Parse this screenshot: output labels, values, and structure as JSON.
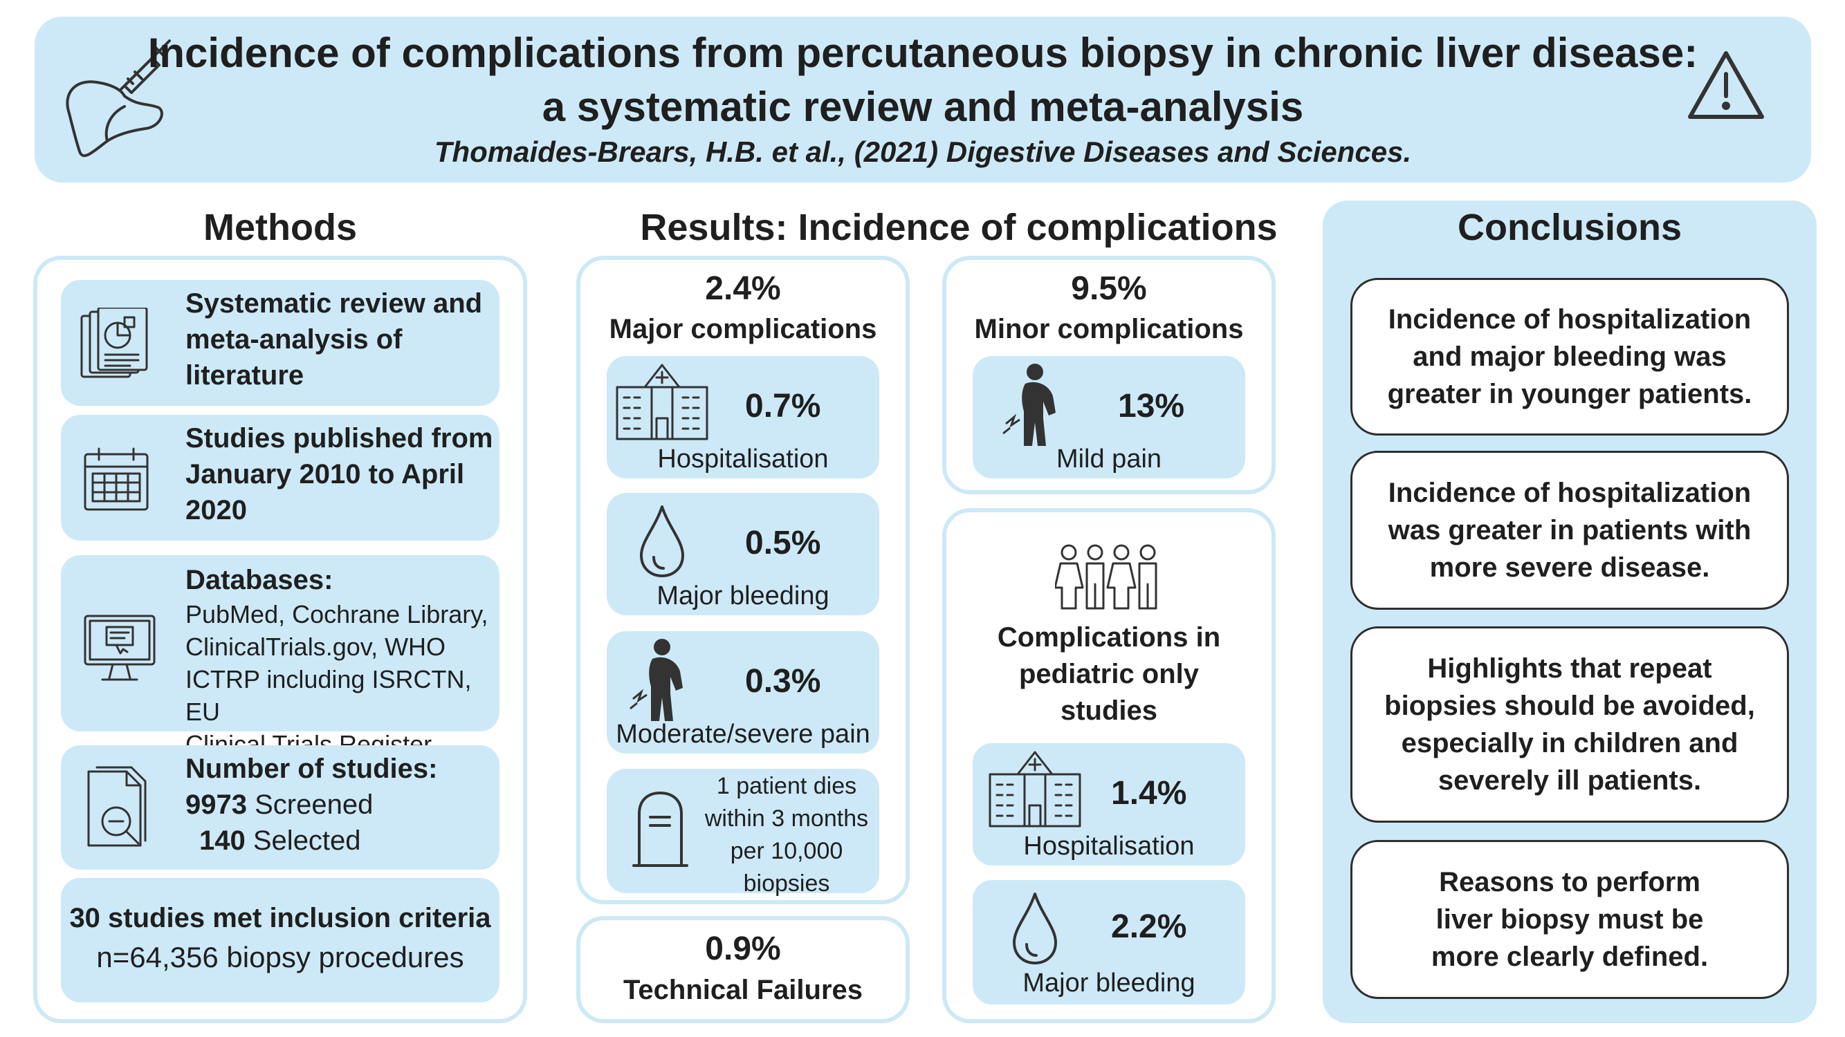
{
  "header": {
    "title_line1": "Incidence of complications from percutaneous biopsy in chronic liver disease:",
    "title_line2": "a systematic review and meta-analysis",
    "citation": "Thomaides-Brears, H.B. et al., (2021) Digestive Diseases and Sciences."
  },
  "methods": {
    "title": "Methods",
    "item1": {
      "line1": "Systematic review and",
      "line2": "meta-analysis of",
      "line3": "literature"
    },
    "item2": {
      "line1": "Studies published from",
      "line2": "January 2010 to April",
      "line3": "2020"
    },
    "item3": {
      "heading": "Databases:",
      "line1": "PubMed, Cochrane Library,",
      "line2": "ClinicalTrials.gov, WHO",
      "line3": "ICTRP including ISRCTN, EU",
      "line4": "Clinical Trials Register"
    },
    "item4": {
      "heading": "Number of studies:",
      "screened_count": "9973",
      "screened_label": "Screened",
      "selected_count": "140",
      "selected_label": "Selected"
    },
    "item5": {
      "line1": "30 studies met inclusion criteria",
      "line2": "n=64,356  biopsy procedures"
    }
  },
  "results": {
    "title": "Results: Incidence of complications",
    "major": {
      "pct": "2.4%",
      "label": "Major complications",
      "hospitalisation": {
        "value": "0.7%",
        "label": "Hospitalisation"
      },
      "bleeding": {
        "value": "0.5%",
        "label": "Major bleeding"
      },
      "pain": {
        "value": "0.3%",
        "label": "Moderate/severe pain"
      },
      "death": {
        "line1": "1 patient dies",
        "line2": "within 3 months",
        "line3": "per 10,000",
        "line4": "biopsies"
      }
    },
    "technical": {
      "pct": "0.9%",
      "label": "Technical Failures"
    },
    "minor": {
      "pct": "9.5%",
      "label": "Minor complications",
      "pain": {
        "value": "13%",
        "label": "Mild pain"
      }
    },
    "pediatric": {
      "line1": "Complications in",
      "line2": "pediatric only",
      "line3": "studies",
      "hospitalisation": {
        "value": "1.4%",
        "label": "Hospitalisation"
      },
      "bleeding": {
        "value": "2.2%",
        "label": "Major bleeding"
      }
    }
  },
  "conclusions": {
    "title": "Conclusions",
    "box1": {
      "line1": "Incidence of hospitalization",
      "line2": "and major bleeding was",
      "line3": "greater in younger patients."
    },
    "box2": {
      "line1": "Incidence of hospitalization",
      "line2": "was greater in patients with",
      "line3": "more severe disease."
    },
    "box3": {
      "line1": "Highlights that repeat",
      "line2": "biopsies should be avoided,",
      "line3": "especially in children and",
      "line4": "severely ill patients."
    },
    "box4": {
      "line1": "Reasons to perform",
      "line2": "liver biopsy must be",
      "line3": "more clearly defined."
    }
  },
  "colors": {
    "accent": "#cde9f7",
    "text": "#1f1f1f",
    "outline": "#2e2e2e"
  },
  "icons": [
    "liver-syringe-icon",
    "warning-icon",
    "documents-icon",
    "calendar-icon",
    "monitor-icon",
    "search-document-icon",
    "hospital-icon",
    "blood-drop-icon",
    "pain-person-icon",
    "gravestone-icon",
    "children-group-icon"
  ]
}
